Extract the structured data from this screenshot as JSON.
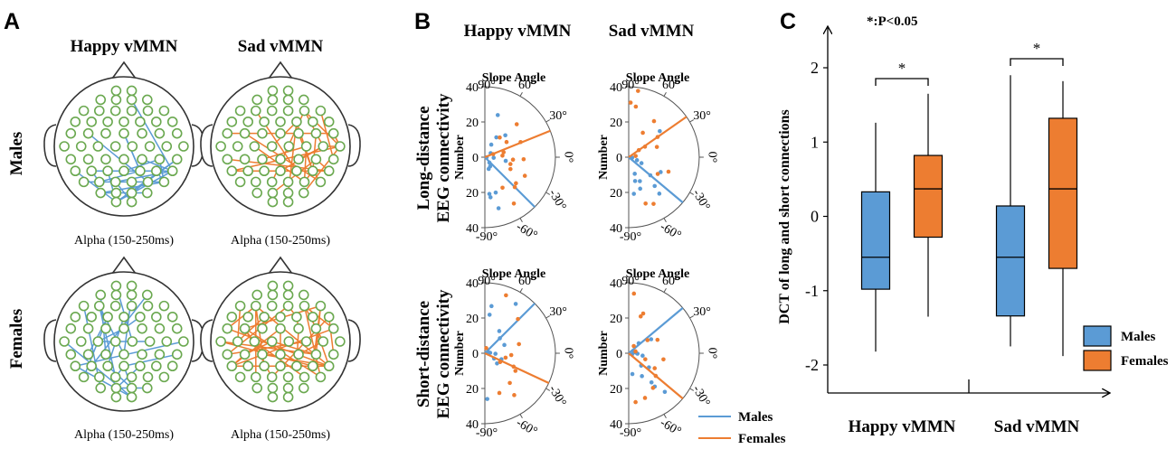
{
  "colors": {
    "males": "#5b9bd5",
    "females": "#ed7d31",
    "electrode": "#6aa84f",
    "axis": "#000000"
  },
  "panel_a": {
    "letter": "A",
    "columns": [
      "Happy vMMN",
      "Sad vMMN"
    ],
    "rows": [
      "Males",
      "Females"
    ],
    "caption": "Alpha (150-250ms)"
  },
  "panel_b": {
    "letter": "B",
    "columns": [
      "Happy vMMN",
      "Sad vMMN"
    ],
    "row_labels": [
      {
        "line1": "Long-distance",
        "line2": "EEG connectivity"
      },
      {
        "line1": "Short-distance",
        "line2": "EEG connectivity"
      }
    ],
    "slope_title": "Slope Angle",
    "number_label": "Number",
    "radial_ticks": [
      "40",
      "20",
      "0",
      "20",
      "40"
    ],
    "angle_labels": [
      "90°",
      "60°",
      "30°",
      "0°",
      "-30°",
      "-60°",
      "-90°"
    ],
    "legend": {
      "males": "Males",
      "females": "Females"
    }
  },
  "chart_data": [
    {
      "type": "box",
      "panel": "C",
      "annotation": "*:P<0.05",
      "ylabel": "DCT of long and short connections",
      "ylim": [
        -2.4,
        2.5
      ],
      "yticks": [
        "2",
        "1",
        "0",
        "-1",
        "-2"
      ],
      "categories": [
        "Happy vMMN",
        "Sad vMMN"
      ],
      "significance": [
        "*",
        "*"
      ],
      "legend": [
        "Males",
        "Females"
      ],
      "series": [
        {
          "name": "Males",
          "boxes": [
            {
              "category": "Happy vMMN",
              "min": -1.82,
              "q1": -0.98,
              "median": -0.55,
              "q3": 0.33,
              "max": 1.26
            },
            {
              "category": "Sad vMMN",
              "min": -1.75,
              "q1": -1.34,
              "median": -0.55,
              "q3": 0.14,
              "max": 1.9
            }
          ]
        },
        {
          "name": "Females",
          "boxes": [
            {
              "category": "Happy vMMN",
              "min": -1.35,
              "q1": -0.28,
              "median": 0.37,
              "q3": 0.82,
              "max": 1.65
            },
            {
              "category": "Sad vMMN",
              "min": -1.88,
              "q1": -0.7,
              "median": 0.37,
              "q3": 1.32,
              "max": 1.82
            }
          ]
        }
      ]
    },
    {
      "type": "polar-scatter",
      "panel": "B",
      "title": "Slope Angle",
      "radial_range": [
        0,
        40
      ],
      "plots": [
        {
          "name": "long-happy",
          "lines": {
            "Males": -45,
            "Females": 22
          },
          "points": {
            "Males": [
              [
                1,
                -5
              ],
              [
                5,
                -4
              ],
              [
                12,
                -10
              ],
              [
                4,
                -50
              ],
              [
                6,
                -60
              ],
              [
                7,
                -72
              ],
              [
                21,
                -73
              ],
              [
                21,
                -83
              ],
              [
                30,
                -75
              ],
              [
                23,
                -82
              ],
              [
                4,
                35
              ],
              [
                8,
                63
              ],
              [
                13,
                60
              ],
              [
                25,
                73
              ],
              [
                17,
                47
              ]
            ],
            "Females": [
              [
                26,
                46
              ],
              [
                14,
                53
              ],
              [
                11,
                15
              ],
              [
                16,
                -5
              ],
              [
                15,
                -15
              ],
              [
                16,
                -25
              ],
              [
                22,
                -3
              ],
              [
                25,
                -25
              ],
              [
                23,
                -40
              ],
              [
                31,
                -58
              ],
              [
                15,
                35
              ],
              [
                22,
                23
              ],
              [
                5,
                20
              ],
              [
                10,
                5
              ],
              [
                20,
                -60
              ],
              [
                24,
                -45
              ]
            ]
          }
        },
        {
          "name": "long-sad",
          "lines": {
            "Males": -40,
            "Females": 35
          },
          "points": {
            "Males": [
              [
                1,
                -5
              ],
              [
                2,
                -8
              ],
              [
                5,
                -20
              ],
              [
                8,
                -25
              ],
              [
                15,
                -65
              ],
              [
                19,
                -70
              ],
              [
                14,
                -75
              ],
              [
                21,
                -82
              ],
              [
                22,
                -48
              ],
              [
                16,
                -40
              ],
              [
                27,
                -50
              ],
              [
                23,
                40
              ],
              [
                20,
                -25
              ],
              [
                10,
                -70
              ]
            ],
            "Females": [
              [
                38,
                82
              ],
              [
                25,
                55
              ],
              [
                17,
                20
              ],
              [
                31,
                88
              ],
              [
                29,
                82
              ],
              [
                16,
                60
              ],
              [
                11,
                33
              ],
              [
                20,
                35
              ],
              [
                24,
                -20
              ],
              [
                19,
                -30
              ],
              [
                30,
                -62
              ],
              [
                28,
                -70
              ],
              [
                7,
                35
              ],
              [
                4,
                10
              ]
            ]
          }
        },
        {
          "name": "short-happy",
          "lines": {
            "Males": 45,
            "Females": -25
          },
          "points": {
            "Males": [
              [
                22,
                83
              ],
              [
                27,
                82
              ],
              [
                12,
                45
              ],
              [
                15,
                57
              ],
              [
                33,
                58
              ],
              [
                2,
                20
              ],
              [
                3,
                5
              ],
              [
                6,
                -3
              ],
              [
                6,
                -30
              ],
              [
                26,
                -87
              ],
              [
                9,
                -40
              ],
              [
                10,
                -20
              ],
              [
                12,
                23
              ]
            ],
            "Females": [
              [
                3,
                75
              ],
              [
                27,
                46
              ],
              [
                35,
                70
              ],
              [
                20,
                15
              ],
              [
                15,
                -4
              ],
              [
                12,
                -12
              ],
              [
                20,
                -30
              ],
              [
                22,
                -50
              ],
              [
                24,
                -70
              ],
              [
                29,
                -55
              ],
              [
                18,
                -25
              ],
              [
                10,
                -30
              ]
            ]
          }
        },
        {
          "name": "short-sad",
          "lines": {
            "Males": 40,
            "Females": -40
          },
          "points": {
            "Males": [
              [
                3,
                12
              ],
              [
                5,
                -3
              ],
              [
                2,
                -20
              ],
              [
                8,
                -10
              ],
              [
                14,
                -35
              ],
              [
                15,
                -60
              ],
              [
                12,
                -80
              ],
              [
                24,
                -52
              ],
              [
                30,
                -47
              ],
              [
                21,
                -52
              ],
              [
                8,
                45
              ],
              [
                15,
                32
              ],
              [
                4,
                5
              ],
              [
                10,
                -45
              ]
            ],
            "Females": [
              [
                34,
                85
              ],
              [
                22,
                72
              ],
              [
                13,
                35
              ],
              [
                18,
                25
              ],
              [
                24,
                70
              ],
              [
                5,
                55
              ],
              [
                17,
                -30
              ],
              [
                20,
                -40
              ],
              [
                24,
                -55
              ],
              [
                27,
                -70
              ],
              [
                10,
                -20
              ],
              [
                28,
                -82
              ],
              [
                4,
                15
              ],
              [
                20,
                -10
              ]
            ]
          }
        }
      ]
    }
  ]
}
